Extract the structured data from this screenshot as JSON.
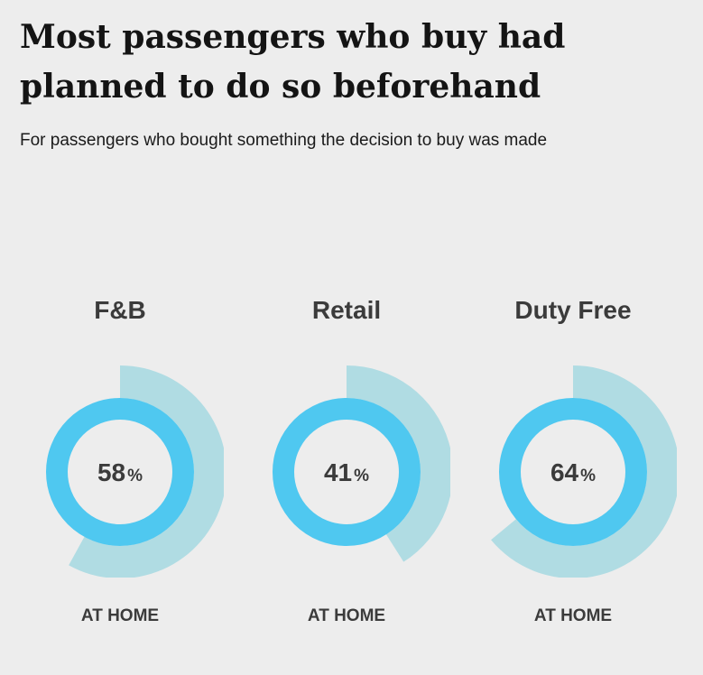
{
  "title": "Most passengers who buy had planned to do so beforehand",
  "subtitle": "For passengers who bought something the decision to buy was made",
  "colors": {
    "outer_arc": "#b0dce3",
    "inner_ring": "#4fc8f0",
    "background": "#ededed"
  },
  "chart_data": {
    "type": "pie",
    "value_unit": "%",
    "categories": [
      "F&B",
      "Retail",
      "Duty Free"
    ],
    "values": [
      58,
      41,
      64
    ],
    "slice_label": "AT HOME"
  }
}
